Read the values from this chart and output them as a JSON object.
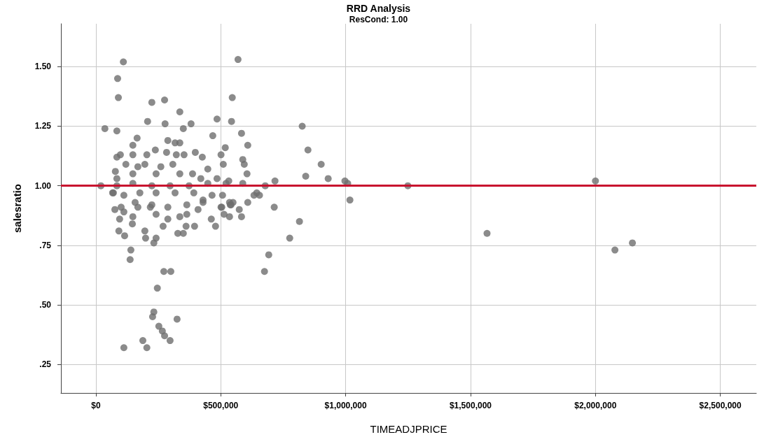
{
  "chart_data": {
    "type": "scatter",
    "title": "RRD Analysis",
    "subtitle": "ResCond: 1.00",
    "xlabel": "TIMEADJPRICE",
    "ylabel": "salesratio",
    "xlim": [
      -140000,
      2644000
    ],
    "xticks": [
      {
        "value": 0,
        "label": "$0"
      },
      {
        "value": 500000,
        "label": "$500,000"
      },
      {
        "value": 1000000,
        "label": "$1,000,000"
      },
      {
        "value": 1500000,
        "label": "$1,500,000"
      },
      {
        "value": 2000000,
        "label": "$2,000,000"
      },
      {
        "value": 2500000,
        "label": "$2,500,000"
      }
    ],
    "ylim": [
      0.13,
      1.68
    ],
    "yticks": [
      {
        "value": 0.25,
        "label": ".25"
      },
      {
        "value": 0.5,
        "label": ".50"
      },
      {
        "value": 0.75,
        "label": ".75"
      },
      {
        "value": 1,
        "label": "1.00"
      },
      {
        "value": 1.25,
        "label": "1.25"
      },
      {
        "value": 1.5,
        "label": "1.50"
      }
    ],
    "grid": true,
    "marker": "circle",
    "ref_lines": [
      {
        "axis": "y",
        "value": 1,
        "color": "#c8102e"
      }
    ],
    "series": [
      {
        "color": "#6e6e6e",
        "x": [
          20000,
          36000,
          110000,
          87000,
          90000,
          84000,
          224000,
          275000,
          336000,
          350000,
          207000,
          277000,
          485000,
          543000,
          546000,
          569000,
          583000,
          468000,
          608000,
          518000,
          501000,
          510000,
          588000,
          594000,
          605000,
          826000,
          849000,
          902000,
          840000,
          930000,
          997000,
          1008000,
          1017000,
          1249000,
          717000,
          678000,
          714000,
          815000,
          776000,
          692000,
          675000,
          608000,
          583000,
          535000,
          513000,
          479000,
          501000,
          574000,
          644000,
          655000,
          633000,
          538000,
          549000,
          1566000,
          2000000,
          2078000,
          2148000,
          112000,
          188000,
          204000,
          232000,
          227000,
          325000,
          252000,
          266000,
          275000,
          297000,
          246000,
          272000,
          300000,
          140000,
          137000,
          92000,
          115000,
          196000,
          199000,
          232000,
          241000,
          328000,
          350000,
          361000,
          395000,
          76000,
          146000,
          95000,
          462000,
          504000,
          535000,
          269000,
          218000,
          288000,
          364000,
          409000,
          429000,
          67000,
          112000,
          168000,
          165000,
          148000,
          288000,
          317000,
          336000,
          381000,
          398000,
          426000,
          448000,
          98000,
          84000,
          238000,
          283000,
          204000,
          353000,
          322000,
          148000,
          120000,
          168000,
          196000,
          260000,
          308000,
          387000,
          78000,
          84000,
          148000,
          241000,
          336000,
          485000,
          420000,
          532000,
          70000,
          112000,
          176000,
          241000,
          317000,
          392000,
          465000,
          507000,
          541000,
          101000,
          157000,
          224000,
          288000,
          364000,
          429000,
          148000,
          241000,
          336000,
          84000,
          148000,
          224000,
          297000,
          373000,
          448000,
          521000,
          588000
        ],
        "values": [
          1.0,
          1.24,
          1.52,
          1.45,
          1.37,
          1.23,
          1.35,
          1.36,
          1.31,
          1.24,
          1.27,
          1.26,
          1.28,
          1.27,
          1.37,
          1.53,
          1.22,
          1.21,
          1.17,
          1.16,
          1.13,
          1.09,
          1.11,
          1.09,
          1.05,
          1.25,
          1.15,
          1.09,
          1.04,
          1.03,
          1.02,
          1.01,
          0.94,
          1.0,
          1.02,
          1.0,
          0.91,
          0.85,
          0.78,
          0.71,
          0.64,
          0.93,
          0.87,
          0.87,
          0.88,
          0.83,
          0.91,
          0.9,
          0.97,
          0.96,
          0.96,
          0.92,
          0.93,
          0.8,
          1.02,
          0.73,
          0.76,
          0.32,
          0.35,
          0.32,
          0.47,
          0.45,
          0.44,
          0.41,
          0.39,
          0.37,
          0.35,
          0.57,
          0.64,
          0.64,
          0.73,
          0.69,
          0.81,
          0.79,
          0.81,
          0.78,
          0.76,
          0.78,
          0.8,
          0.8,
          0.83,
          0.83,
          0.9,
          0.84,
          0.86,
          0.86,
          0.91,
          0.93,
          0.83,
          0.91,
          0.86,
          0.88,
          0.9,
          0.94,
          0.97,
          0.89,
          0.91,
          1.2,
          1.17,
          1.19,
          1.18,
          1.18,
          1.26,
          1.14,
          1.12,
          1.07,
          1.13,
          1.12,
          1.15,
          1.14,
          1.13,
          1.13,
          1.13,
          1.13,
          1.09,
          1.08,
          1.09,
          1.08,
          1.09,
          1.05,
          1.06,
          1.03,
          1.05,
          1.05,
          1.05,
          1.03,
          1.03,
          1.02,
          0.97,
          0.96,
          0.97,
          0.97,
          0.97,
          0.97,
          0.96,
          0.96,
          0.92,
          0.91,
          0.93,
          0.92,
          0.91,
          0.92,
          0.93,
          0.87,
          0.88,
          0.87,
          1.0,
          1.01,
          1.0,
          1.0,
          1.0,
          1.01,
          1.01,
          1.01
        ]
      }
    ]
  }
}
